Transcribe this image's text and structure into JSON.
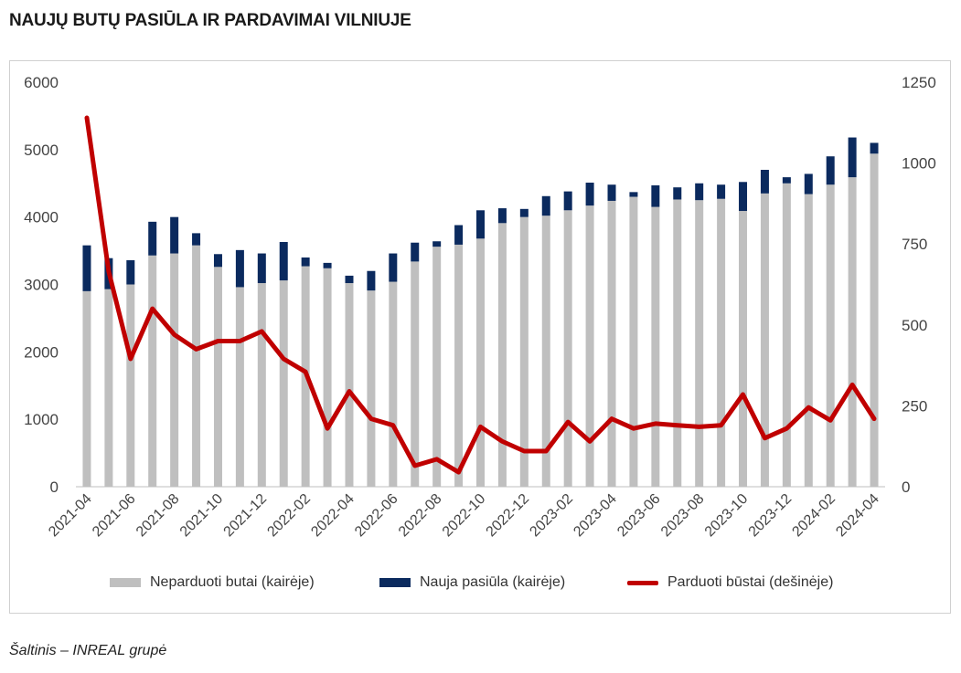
{
  "title": "NAUJŲ BUTŲ PASIŪLA IR PARDAVIMAI VILNIUJE",
  "source": "Šaltinis – INREAL grupė",
  "colors": {
    "unsold": "#bfbfbf",
    "new_supply": "#0b2a5e",
    "sold": "#c00000"
  },
  "chart_data": {
    "type": "bar",
    "stacked": true,
    "title": "NAUJŲ BUTŲ PASIŪLA IR PARDAVIMAI VILNIUJE",
    "categories": [
      "2021-04",
      "2021-05",
      "2021-06",
      "2021-07",
      "2021-08",
      "2021-09",
      "2021-10",
      "2021-11",
      "2021-12",
      "2022-01",
      "2022-02",
      "2022-03",
      "2022-04",
      "2022-05",
      "2022-06",
      "2022-07",
      "2022-08",
      "2022-09",
      "2022-10",
      "2022-11",
      "2022-12",
      "2023-01",
      "2023-02",
      "2023-03",
      "2023-04",
      "2023-05",
      "2023-06",
      "2023-07",
      "2023-08",
      "2023-09",
      "2023-10",
      "2023-11",
      "2023-12",
      "2024-01",
      "2024-02",
      "2024-03",
      "2024-04"
    ],
    "x_tick_labels": [
      "2021-04",
      "2021-06",
      "2021-08",
      "2021-10",
      "2021-12",
      "2022-02",
      "2022-04",
      "2022-06",
      "2022-08",
      "2022-10",
      "2022-12",
      "2023-02",
      "2023-04",
      "2023-06",
      "2023-08",
      "2023-10",
      "2023-12",
      "2024-02",
      "2024-04"
    ],
    "ylim_left": [
      0,
      6000
    ],
    "yticks_left": [
      0,
      1000,
      2000,
      3000,
      4000,
      5000,
      6000
    ],
    "ylim_right": [
      0,
      1250
    ],
    "yticks_right": [
      0,
      250,
      500,
      750,
      1000,
      1250
    ],
    "grid": false,
    "legend_position": "bottom",
    "series": [
      {
        "name": "Neparduoti butai (kairėje)",
        "type": "bar",
        "axis": "left",
        "stack": "total",
        "values": [
          2900,
          2930,
          3000,
          3430,
          3460,
          3580,
          3260,
          2960,
          3020,
          3060,
          3270,
          3240,
          3020,
          2910,
          3040,
          3340,
          3560,
          3590,
          3680,
          3910,
          4000,
          4020,
          4100,
          4170,
          4240,
          4300,
          4150,
          4260,
          4250,
          4270,
          4090,
          4350,
          4500,
          4340,
          4480,
          4590,
          4940
        ]
      },
      {
        "name": "Nauja pasiūla (kairėje)",
        "type": "bar",
        "axis": "left",
        "stack": "total",
        "values": [
          680,
          460,
          360,
          500,
          540,
          180,
          190,
          550,
          440,
          570,
          130,
          80,
          110,
          290,
          420,
          280,
          80,
          290,
          420,
          220,
          120,
          290,
          280,
          340,
          240,
          70,
          320,
          180,
          250,
          210,
          430,
          350,
          90,
          300,
          420,
          590,
          160
        ]
      },
      {
        "name": "Parduoti būstai (dešinėje)",
        "type": "line",
        "axis": "right",
        "values": [
          1140,
          665,
          395,
          550,
          470,
          425,
          450,
          450,
          480,
          395,
          355,
          180,
          295,
          210,
          190,
          65,
          85,
          45,
          185,
          140,
          110,
          110,
          200,
          140,
          210,
          180,
          195,
          190,
          185,
          190,
          285,
          150,
          180,
          245,
          205,
          315,
          210
        ]
      }
    ]
  }
}
